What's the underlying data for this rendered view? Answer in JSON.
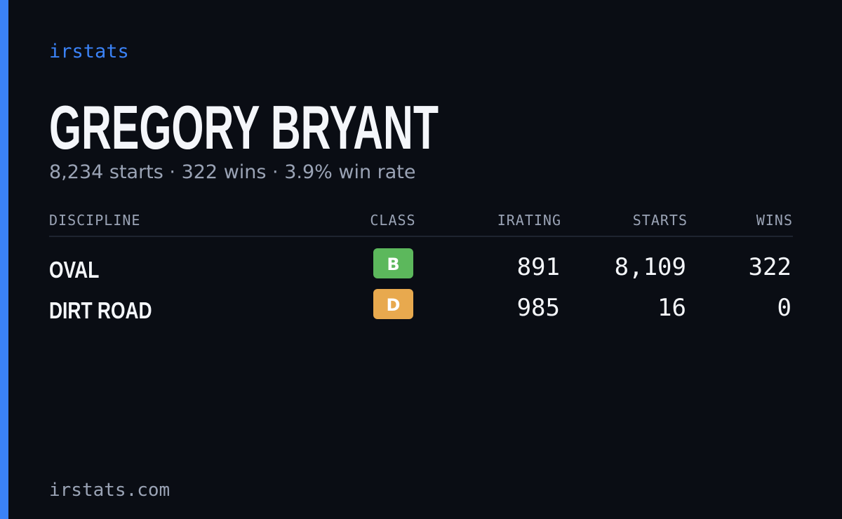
{
  "brand": "irstats",
  "driver": {
    "name": "GREGORY BRYANT",
    "summary": "8,234 starts · 322 wins · 3.9% win rate"
  },
  "table": {
    "headers": [
      "DISCIPLINE",
      "CLASS",
      "IRATING",
      "STARTS",
      "WINS"
    ],
    "rows": [
      {
        "discipline": "OVAL",
        "class": "B",
        "class_color": "#5cb85c",
        "irating": "891",
        "starts": "8,109",
        "wins": "322"
      },
      {
        "discipline": "DIRT ROAD",
        "class": "D",
        "class_color": "#e8a94e",
        "irating": "985",
        "starts": "16",
        "wins": "0"
      }
    ]
  },
  "footer": "irstats.com"
}
